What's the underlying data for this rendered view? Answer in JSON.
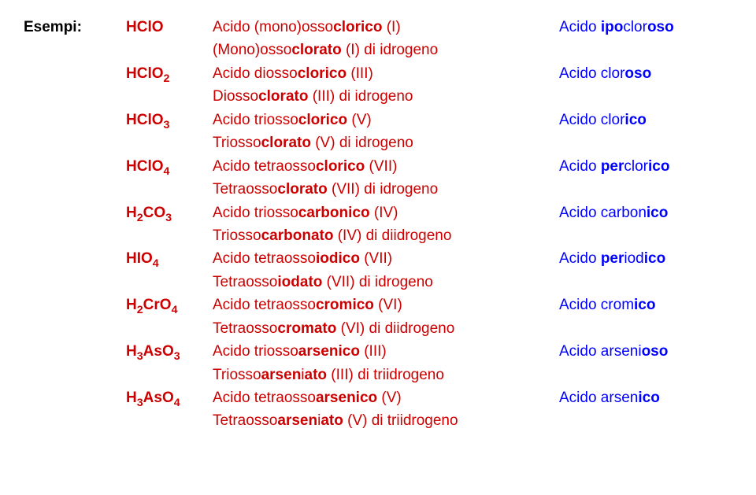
{
  "header": {
    "label": "Esempi:"
  },
  "rows": [
    {
      "formula_prefix": "HClO",
      "formula_sub": "",
      "nom": [
        {
          "t": "Acido (mono)osso"
        },
        {
          "t": "clor",
          "b": true
        },
        {
          "t": "ico",
          "b": true
        },
        {
          "t": " (I)"
        }
      ],
      "nom2": [
        {
          "t": "(Mono)osso"
        },
        {
          "t": "clor",
          "b": true
        },
        {
          "t": "ato",
          "b": true
        },
        {
          "t": " (I) di idrogeno"
        }
      ],
      "trad": [
        {
          "t": "Acido "
        },
        {
          "t": "ipo",
          "b": true
        },
        {
          "t": "clor"
        },
        {
          "t": "oso",
          "b": true
        }
      ]
    },
    {
      "formula_prefix": "HClO",
      "formula_sub": "2",
      "nom": [
        {
          "t": "Acido diosso"
        },
        {
          "t": "clor",
          "b": true
        },
        {
          "t": "ico",
          "b": true
        },
        {
          "t": " (III)"
        }
      ],
      "nom2": [
        {
          "t": "Diosso"
        },
        {
          "t": "clor",
          "b": true
        },
        {
          "t": "ato",
          "b": true
        },
        {
          "t": " (III) di idrogeno"
        }
      ],
      "trad": [
        {
          "t": "Acido clor"
        },
        {
          "t": "oso",
          "b": true
        }
      ]
    },
    {
      "formula_prefix": "HClO",
      "formula_sub": "3",
      "nom": [
        {
          "t": "Acido triosso"
        },
        {
          "t": "clor",
          "b": true
        },
        {
          "t": "ico",
          "b": true
        },
        {
          "t": " (V)"
        }
      ],
      "nom2": [
        {
          "t": "Triosso"
        },
        {
          "t": "clor",
          "b": true
        },
        {
          "t": "ato",
          "b": true
        },
        {
          "t": " (V) di idrogeno"
        }
      ],
      "trad": [
        {
          "t": "Acido clor"
        },
        {
          "t": "ico",
          "b": true
        }
      ]
    },
    {
      "formula_prefix": "HClO",
      "formula_sub": "4",
      "nom": [
        {
          "t": "Acido tetraosso"
        },
        {
          "t": "clor",
          "b": true
        },
        {
          "t": "ico",
          "b": true
        },
        {
          "t": " (VII)"
        }
      ],
      "nom2": [
        {
          "t": "Tetraosso"
        },
        {
          "t": "clor",
          "b": true
        },
        {
          "t": "ato",
          "b": true
        },
        {
          "t": " (VII) di idrogeno"
        }
      ],
      "trad": [
        {
          "t": "Acido "
        },
        {
          "t": "per",
          "b": true
        },
        {
          "t": "clor"
        },
        {
          "t": "ico",
          "b": true
        }
      ]
    },
    {
      "formula_prefix": "H",
      "formula_sub": "2",
      "formula_mid": "CO",
      "formula_sub2": "3",
      "nom": [
        {
          "t": "Acido triosso"
        },
        {
          "t": "carbon",
          "b": true
        },
        {
          "t": "ico",
          "b": true
        },
        {
          "t": " (IV)"
        }
      ],
      "nom2": [
        {
          "t": "Triosso"
        },
        {
          "t": "carbon",
          "b": true
        },
        {
          "t": "ato",
          "b": true
        },
        {
          "t": " (IV) di diidrogeno"
        }
      ],
      "trad": [
        {
          "t": "Acido carbon"
        },
        {
          "t": "ico",
          "b": true
        }
      ]
    },
    {
      "formula_prefix": "HIO",
      "formula_sub": "4",
      "nom": [
        {
          "t": "Acido tetraosso"
        },
        {
          "t": "iod",
          "b": true
        },
        {
          "t": "ico",
          "b": true
        },
        {
          "t": " (VII)"
        }
      ],
      "nom2": [
        {
          "t": "Tetraosso"
        },
        {
          "t": "iod",
          "b": true
        },
        {
          "t": "ato",
          "b": true
        },
        {
          "t": " (VII) di idrogeno"
        }
      ],
      "trad": [
        {
          "t": "Acido "
        },
        {
          "t": "per",
          "b": true
        },
        {
          "t": "iod"
        },
        {
          "t": "ico",
          "b": true
        }
      ]
    },
    {
      "formula_prefix": "H",
      "formula_sub": "2",
      "formula_mid": "CrO",
      "formula_sub2": "4",
      "nom": [
        {
          "t": "Acido tetraosso"
        },
        {
          "t": "crom",
          "b": true
        },
        {
          "t": "ico",
          "b": true
        },
        {
          "t": " (VI)"
        }
      ],
      "nom2": [
        {
          "t": "Tetraosso"
        },
        {
          "t": "crom",
          "b": true
        },
        {
          "t": "ato",
          "b": true
        },
        {
          "t": " (VI) di diidrogeno"
        }
      ],
      "trad": [
        {
          "t": "Acido crom"
        },
        {
          "t": "ico",
          "b": true
        }
      ]
    },
    {
      "formula_prefix": "H",
      "formula_sub": "3",
      "formula_mid": "AsO",
      "formula_sub2": "3",
      "nom": [
        {
          "t": "Acido triosso"
        },
        {
          "t": "arsen",
          "b": true
        },
        {
          "t": "ico",
          "b": true
        },
        {
          "t": " (III)"
        }
      ],
      "nom2": [
        {
          "t": "Triosso"
        },
        {
          "t": "arsen",
          "b": true
        },
        {
          "t": "i"
        },
        {
          "t": "ato",
          "b": true
        },
        {
          "t": " (III) di triidrogeno"
        }
      ],
      "trad": [
        {
          "t": "Acido arseni"
        },
        {
          "t": "oso",
          "b": true
        }
      ]
    },
    {
      "formula_prefix": "H",
      "formula_sub": "3",
      "formula_mid": "AsO",
      "formula_sub2": "4",
      "nom": [
        {
          "t": "Acido tetraosso"
        },
        {
          "t": "arsen",
          "b": true
        },
        {
          "t": "ico",
          "b": true
        },
        {
          "t": " (V)"
        }
      ],
      "nom2": [
        {
          "t": "Tetraosso"
        },
        {
          "t": "arsen",
          "b": true
        },
        {
          "t": "i"
        },
        {
          "t": "ato",
          "b": true
        },
        {
          "t": " (V) di triidrogeno"
        }
      ],
      "trad": [
        {
          "t": "Acido arsen"
        },
        {
          "t": "ico",
          "b": true
        }
      ]
    }
  ]
}
